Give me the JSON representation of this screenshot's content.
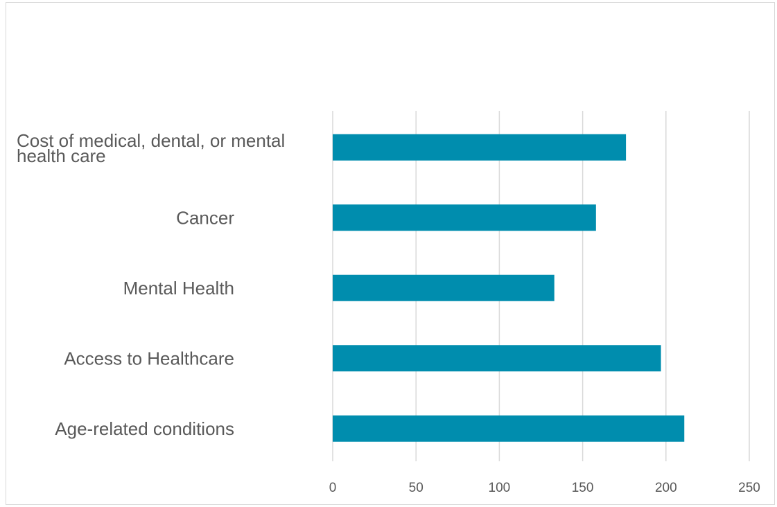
{
  "chart_data": {
    "type": "bar",
    "orientation": "horizontal",
    "categories": [
      "Cost of medical, dental, or mental health care",
      "Cancer",
      "Mental Health",
      "Access to Healthcare",
      "Age-related conditions"
    ],
    "category_label_lines": [
      [
        "Cost of medical, dental, or mental",
        "health care"
      ],
      [
        "Cancer"
      ],
      [
        "Mental Health"
      ],
      [
        "Access to Healthcare"
      ],
      [
        "Age-related conditions"
      ]
    ],
    "values": [
      176,
      158,
      133,
      197,
      211
    ],
    "xlim": [
      0,
      250
    ],
    "ticks": [
      0,
      50,
      100,
      150,
      200,
      250
    ],
    "tick_labels": [
      "0",
      "50",
      "100",
      "150",
      "200",
      "250"
    ],
    "title": "",
    "xlabel": "",
    "ylabel": "",
    "grid": "vertical",
    "legend": "none",
    "colors": {
      "bar": "#008DAE",
      "grid": "#D9D9D9",
      "text": "#595959",
      "border": "#D9D9D9"
    }
  }
}
